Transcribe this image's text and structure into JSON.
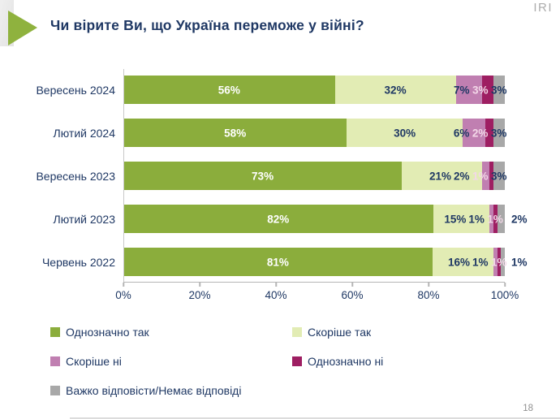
{
  "slide": {
    "logo": "IRI",
    "page_number": "18"
  },
  "theme": {
    "text_navy": "#1F3864",
    "accent_green": "#8FB23E",
    "axis_gray": "#B5B5B5"
  },
  "chart_data": {
    "type": "bar",
    "variant": "horizontal-stacked",
    "title": "Чи вірите Ви, що Україна переможе у війні?",
    "categories": [
      "Вересень 2024",
      "Лютий 2024",
      "Вересень 2023",
      "Лютий 2023",
      "Червень 2022"
    ],
    "series": [
      {
        "name": "Однозначно так",
        "color": "#8BAD3C",
        "label_color": "#FFFFFF",
        "values": [
          56,
          58,
          73,
          82,
          81
        ]
      },
      {
        "name": "Скоріше так",
        "color": "#E2ECB4",
        "label_color": "#1F3864",
        "values": [
          32,
          30,
          21,
          15,
          16
        ]
      },
      {
        "name": "Скоріше ні",
        "color": "#C07FB1",
        "label_color": "#1F3864",
        "values": [
          7,
          6,
          2,
          1,
          1
        ]
      },
      {
        "name": "Однозначно ні",
        "color": "#9E1E62",
        "label_color": "#F3D8E8",
        "values": [
          3,
          2,
          1,
          1,
          1
        ]
      },
      {
        "name": "Важко відповісти/Немає відповіді",
        "color": "#A8A8A8",
        "label_color": "#1F3864",
        "values": [
          3,
          3,
          3,
          2,
          1
        ]
      }
    ],
    "x_ticks": [
      "0%",
      "20%",
      "40%",
      "60%",
      "80%",
      "100%"
    ],
    "xlim": [
      0,
      100
    ],
    "value_suffix": "%",
    "legend_position": "bottom",
    "grid": false
  }
}
